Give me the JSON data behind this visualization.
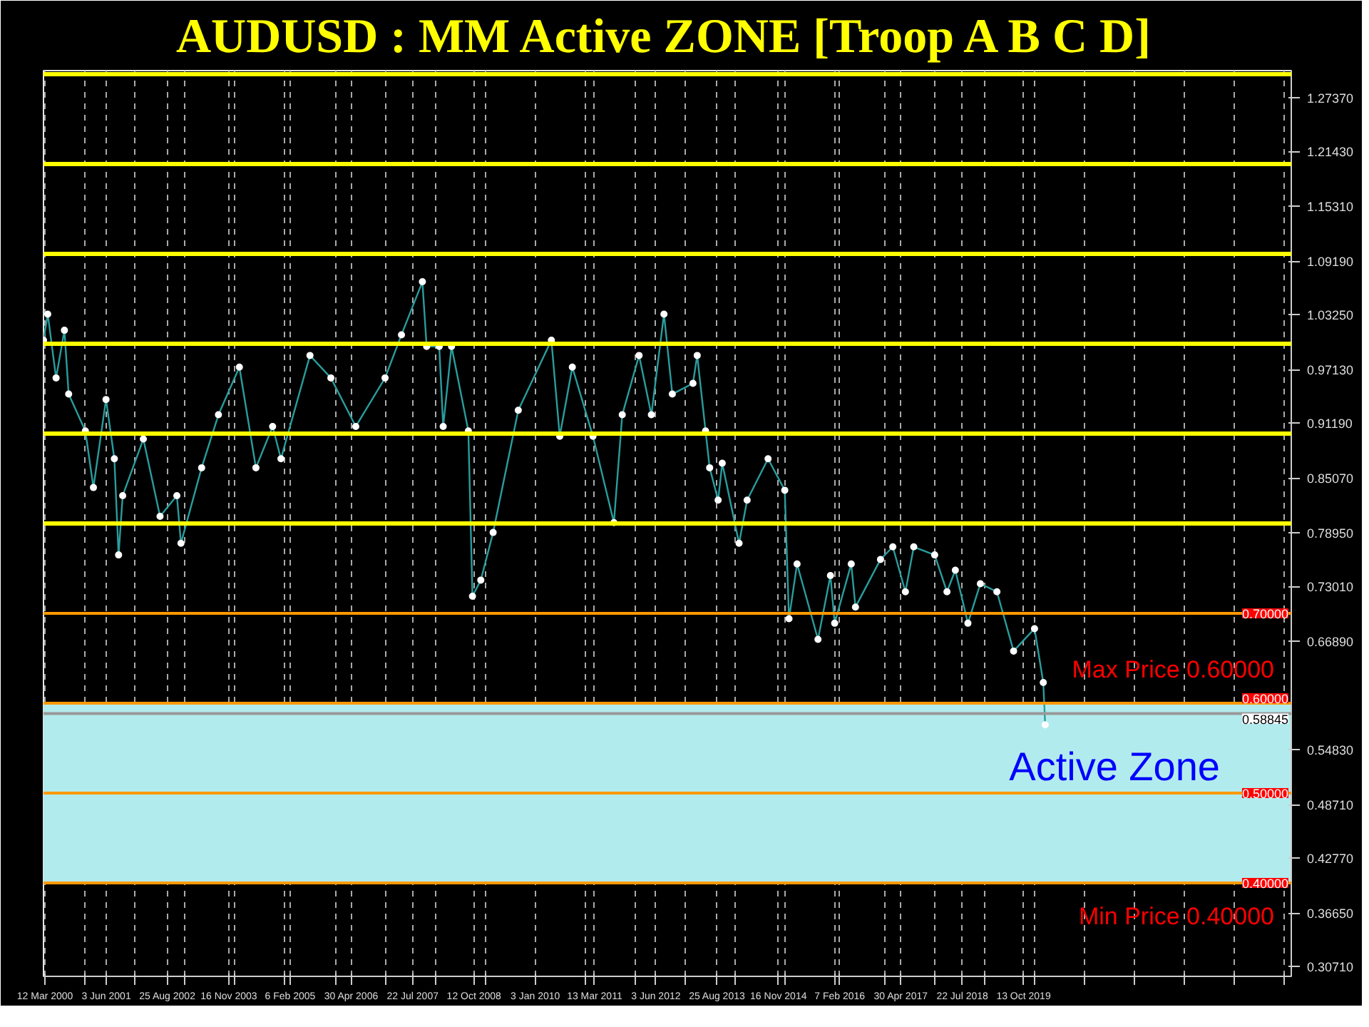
{
  "chart_data": {
    "type": "line",
    "title": "AUDUSD : MM Active ZONE [Troop A B C D]",
    "x": [
      "2000-03",
      "2000-04",
      "2000-06",
      "2000-08",
      "2000-09",
      "2001-01",
      "2001-03",
      "2001-06",
      "2001-08",
      "2001-09",
      "2001-10",
      "2002-03",
      "2002-07",
      "2002-11",
      "2002-12",
      "2003-05",
      "2003-09",
      "2004-02",
      "2004-06",
      "2004-10",
      "2004-12",
      "2005-07",
      "2005-12",
      "2006-06",
      "2007-01",
      "2007-05",
      "2007-10",
      "2007-11",
      "2008-02",
      "2008-03",
      "2008-05",
      "2008-09",
      "2008-10",
      "2008-12",
      "2009-03",
      "2009-09",
      "2010-05",
      "2010-07",
      "2010-10",
      "2011-03",
      "2011-08",
      "2011-10",
      "2012-02",
      "2012-05",
      "2012-08",
      "2012-10",
      "2013-03",
      "2013-04",
      "2013-06",
      "2013-07",
      "2013-09",
      "2013-10",
      "2014-02",
      "2014-04",
      "2014-09",
      "2015-01",
      "2015-02",
      "2015-04",
      "2015-09",
      "2015-12",
      "2016-01",
      "2016-05",
      "2016-06",
      "2016-12",
      "2017-03",
      "2017-06",
      "2017-08",
      "2018-01",
      "2018-04",
      "2018-06",
      "2018-09",
      "2018-12",
      "2019-04",
      "2019-08",
      "2020-01",
      "2020-03-05",
      "2020-03-19"
    ],
    "series": [
      {
        "color": "#ffffff",
        "values": [
          1.004,
          1.033,
          0.962,
          1.015,
          0.944,
          0.903,
          0.84,
          0.938,
          0.872,
          0.765,
          0.831,
          0.894,
          0.808,
          0.831,
          0.778,
          0.862,
          0.921,
          0.974,
          0.862,
          0.908,
          0.872,
          0.987,
          0.962,
          0.908,
          0.962,
          1.01,
          1.069,
          0.997,
          0.997,
          0.908,
          0.997,
          0.903,
          0.719,
          0.737,
          0.79,
          0.926,
          1.004,
          0.897,
          0.974,
          0.897,
          0.801,
          0.921,
          0.987,
          0.921,
          1.033,
          0.944,
          0.956,
          0.987,
          0.903,
          0.862,
          0.826,
          0.867,
          0.778,
          0.826,
          0.872,
          0.837,
          0.694,
          0.755,
          0.671,
          0.742,
          0.689,
          0.755,
          0.707,
          0.76,
          0.774,
          0.724,
          0.774,
          0.765,
          0.724,
          0.748,
          0.689,
          0.733,
          0.724,
          0.658,
          0.683,
          0.623,
          0.576
        ]
      }
    ],
    "marker": "circle",
    "line_style": "solid",
    "grid": "x",
    "xlim": [
      "2000-03-01",
      "2025-02-20"
    ],
    "xticks": [
      {
        "value": "2000-03-12",
        "label": "12 Mar 2000"
      },
      {
        "value": "2001-06-03",
        "label": "3 Jun 2001"
      },
      {
        "value": "2002-08-25",
        "label": "25 Aug 2002"
      },
      {
        "value": "2003-11-16",
        "label": "16 Nov 2003"
      },
      {
        "value": "2005-02-06",
        "label": "6 Feb 2005"
      },
      {
        "value": "2006-04-30",
        "label": "30 Apr 2006"
      },
      {
        "value": "2007-07-22",
        "label": "22 Jul 2007"
      },
      {
        "value": "2008-10-12",
        "label": "12 Oct 2008"
      },
      {
        "value": "2010-01-03",
        "label": "3 Jan 2010"
      },
      {
        "value": "2011-03-13",
        "label": "13 Mar 2011"
      },
      {
        "value": "2012-06-03",
        "label": "3 Jun 2012"
      },
      {
        "value": "2013-08-25",
        "label": "25 Aug 2013"
      },
      {
        "value": "2014-11-16",
        "label": "16 Nov 2014"
      },
      {
        "value": "2016-02-07",
        "label": "7 Feb 2016"
      },
      {
        "value": "2017-04-30",
        "label": "30 Apr 2017"
      },
      {
        "value": "2018-07-22",
        "label": "22 Jul 2018"
      },
      {
        "value": "2019-10-13",
        "label": "13 Oct 2019"
      },
      {
        "value": "2001-01",
        "label": null
      },
      {
        "value": "2002-01",
        "label": null
      },
      {
        "value": "2003-01",
        "label": null
      },
      {
        "value": "2004-01",
        "label": null
      },
      {
        "value": "2005-01",
        "label": null
      },
      {
        "value": "2006-01",
        "label": null
      },
      {
        "value": "2007-01",
        "label": null
      },
      {
        "value": "2008-01",
        "label": null
      },
      {
        "value": "2009-01",
        "label": null
      },
      {
        "value": "2010-01",
        "label": null
      },
      {
        "value": "2011-01",
        "label": null
      },
      {
        "value": "2012-01",
        "label": null
      },
      {
        "value": "2013-01",
        "label": null
      },
      {
        "value": "2014-01",
        "label": null
      },
      {
        "value": "2015-01",
        "label": null
      },
      {
        "value": "2016-01",
        "label": null
      },
      {
        "value": "2017-01",
        "label": null
      },
      {
        "value": "2018-01",
        "label": null
      },
      {
        "value": "2019-01",
        "label": null
      },
      {
        "value": "2020-01",
        "label": null
      },
      {
        "value": "2021-01",
        "label": null
      },
      {
        "value": "2022-01",
        "label": null
      },
      {
        "value": "2023-01",
        "label": null
      },
      {
        "value": "2024-01",
        "label": null
      },
      {
        "value": "2025-01",
        "label": null
      }
    ],
    "ylim": [
      0.296,
      1.304
    ],
    "yticks": [
      {
        "value": 1.2737,
        "label": "1.27370"
      },
      {
        "value": 1.2143,
        "label": "1.21430"
      },
      {
        "value": 1.1531,
        "label": "1.15310"
      },
      {
        "value": 1.0919,
        "label": "1.09190"
      },
      {
        "value": 1.0325,
        "label": "1.03250"
      },
      {
        "value": 0.9713,
        "label": "0.97130"
      },
      {
        "value": 0.9119,
        "label": "0.91190"
      },
      {
        "value": 0.8507,
        "label": "0.85070"
      },
      {
        "value": 0.7895,
        "label": "0.78950"
      },
      {
        "value": 0.7301,
        "label": "0.73010"
      },
      {
        "value": 0.6689,
        "label": "0.66890"
      },
      {
        "value": 0.5483,
        "label": "0.54830"
      },
      {
        "value": 0.4871,
        "label": "0.48710"
      },
      {
        "value": 0.4277,
        "label": "0.42770"
      },
      {
        "value": 0.3665,
        "label": "0.36650"
      },
      {
        "value": 0.3071,
        "label": "0.30710"
      }
    ],
    "bands": [
      {
        "axis": "y",
        "from": 0.4,
        "to": 0.6,
        "label": "Active Zone",
        "color": "#b2ebee"
      }
    ],
    "ref_lines": [
      {
        "axis": "y",
        "value": 1.3,
        "label": null,
        "color": "#ffff00"
      },
      {
        "axis": "y",
        "value": 1.2,
        "label": null,
        "color": "#ffff00"
      },
      {
        "axis": "y",
        "value": 1.1,
        "label": null,
        "color": "#ffff00"
      },
      {
        "axis": "y",
        "value": 1.0,
        "label": null,
        "color": "#ffff00"
      },
      {
        "axis": "y",
        "value": 0.9,
        "label": null,
        "color": "#ffff00"
      },
      {
        "axis": "y",
        "value": 0.8,
        "label": null,
        "color": "#ffff00"
      },
      {
        "axis": "y",
        "value": 0.7,
        "label": "0.70000",
        "color": "#ff9900"
      },
      {
        "axis": "y",
        "value": 0.6,
        "label": "0.60000",
        "color": "#ff9900"
      },
      {
        "axis": "y",
        "value": 0.5,
        "label": "0.50000",
        "color": "#ff9900"
      },
      {
        "axis": "y",
        "value": 0.4,
        "label": "0.40000",
        "color": "#ff9900"
      },
      {
        "axis": "y",
        "value": 0.58845,
        "label": "0.58845",
        "color": "#999999"
      }
    ],
    "annotations": [
      "Max Price 0.60000",
      "Min Price 0.40000"
    ]
  }
}
